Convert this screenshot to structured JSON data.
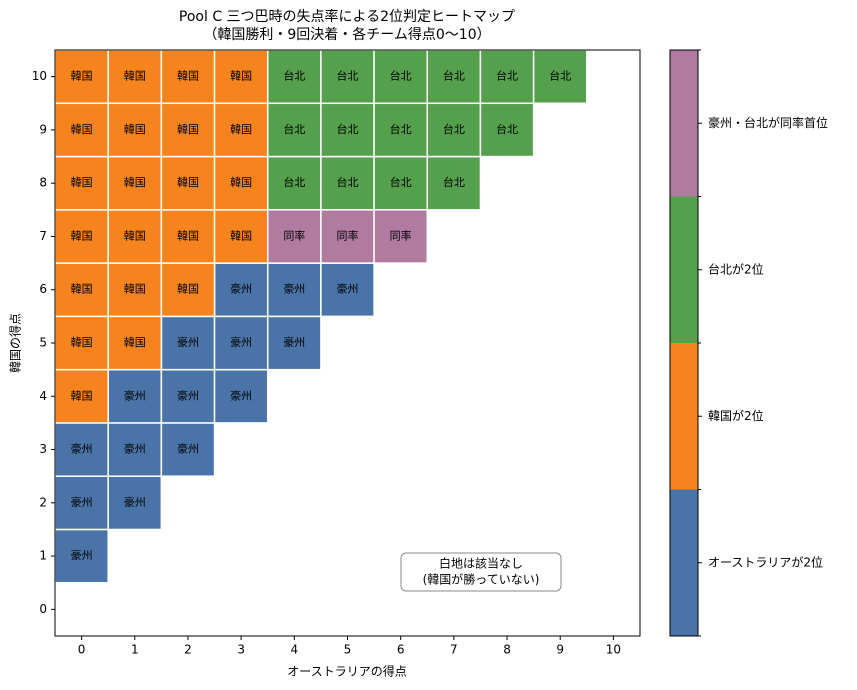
{
  "chart_data": {
    "type": "heatmap",
    "title": [
      "Pool C 三つ巴時の失点率による2位判定ヒートマップ",
      "（韓国勝利・9回決着・各チーム得点0〜10）"
    ],
    "x_label": "オーストラリアの得点",
    "y_label": "韓国の得点",
    "xlim": [
      -0.5,
      10.5
    ],
    "ylim": [
      -0.5,
      10.5
    ],
    "xticks": [
      0,
      1,
      2,
      3,
      4,
      5,
      6,
      7,
      8,
      9,
      10
    ],
    "yticks": [
      0,
      1,
      2,
      3,
      4,
      5,
      6,
      7,
      8,
      9,
      10
    ],
    "annotation": [
      "白地は該当なし",
      "(韓国が勝っていない)"
    ],
    "series": [
      {
        "name": "オーストラリアが2位",
        "color": "#4a74a8",
        "cell_label": "豪州",
        "x": [
          0,
          0,
          1,
          0,
          1,
          2,
          1,
          2,
          3,
          2,
          3,
          4,
          3,
          4,
          5
        ],
        "y": [
          1,
          2,
          2,
          3,
          3,
          3,
          4,
          4,
          4,
          5,
          5,
          5,
          6,
          6,
          6
        ]
      },
      {
        "name": "韓国が2位",
        "color": "#f5841f",
        "cell_label": "韓国",
        "x": [
          0,
          0,
          1,
          0,
          1,
          2,
          0,
          1,
          2,
          3,
          0,
          1,
          2,
          3,
          0,
          1,
          2,
          3,
          0,
          1,
          2,
          3
        ],
        "y": [
          4,
          5,
          5,
          6,
          6,
          6,
          7,
          7,
          7,
          7,
          8,
          8,
          8,
          8,
          9,
          9,
          9,
          9,
          10,
          10,
          10,
          10
        ]
      },
      {
        "name": "台北が2位",
        "color": "#54a04c",
        "cell_label": "台北",
        "x": [
          4,
          5,
          6,
          7,
          4,
          5,
          6,
          7,
          8,
          4,
          5,
          6,
          7,
          8,
          9
        ],
        "y": [
          8,
          8,
          8,
          8,
          9,
          9,
          9,
          9,
          9,
          10,
          10,
          10,
          10,
          10,
          10
        ]
      },
      {
        "name": "豪州・台北が同率首位",
        "color": "#b07aa1",
        "cell_label": "同率",
        "x": [
          4,
          5,
          6
        ],
        "y": [
          7,
          7,
          7
        ]
      }
    ]
  }
}
